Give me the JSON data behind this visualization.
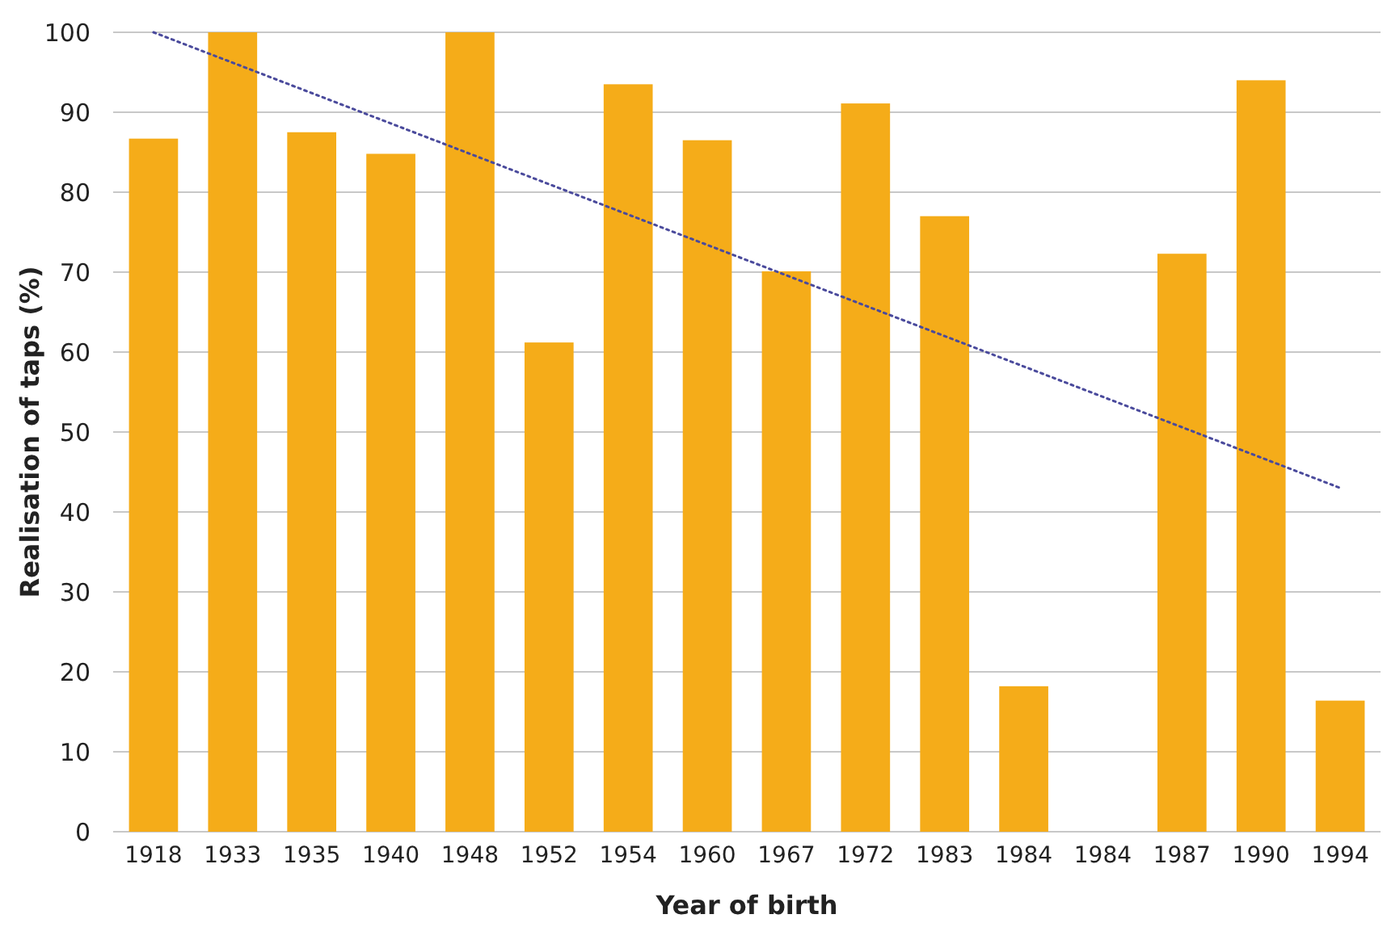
{
  "chart_data": {
    "type": "bar",
    "xlabel": "Year of birth",
    "ylabel": "Realisation of taps (%)",
    "categories": [
      "1918",
      "1933",
      "1935",
      "1940",
      "1948",
      "1952",
      "1954",
      "1960",
      "1967",
      "1972",
      "1983",
      "1984",
      "1984",
      "1987",
      "1990",
      "1994"
    ],
    "series": [
      {
        "color": "#f5ac19",
        "values": [
          86.7,
          100,
          87.5,
          84.8,
          100,
          61.2,
          93.5,
          86.5,
          70.1,
          91.1,
          77,
          18.2,
          0,
          72.3,
          94,
          16.4
        ]
      },
      {
        "type": "line",
        "color": "#4a4a9c",
        "line_style": "dotted",
        "values": [
          100,
          96.2,
          92.4,
          88.6,
          84.8,
          81,
          77.2,
          73.4,
          69.6,
          65.8,
          62,
          58.2,
          54.4,
          50.6,
          46.8,
          43
        ]
      }
    ],
    "ylim": [
      0,
      100
    ],
    "yticks": [
      0,
      10,
      20,
      30,
      40,
      50,
      60,
      70,
      80,
      90,
      100
    ],
    "grid": "y"
  }
}
